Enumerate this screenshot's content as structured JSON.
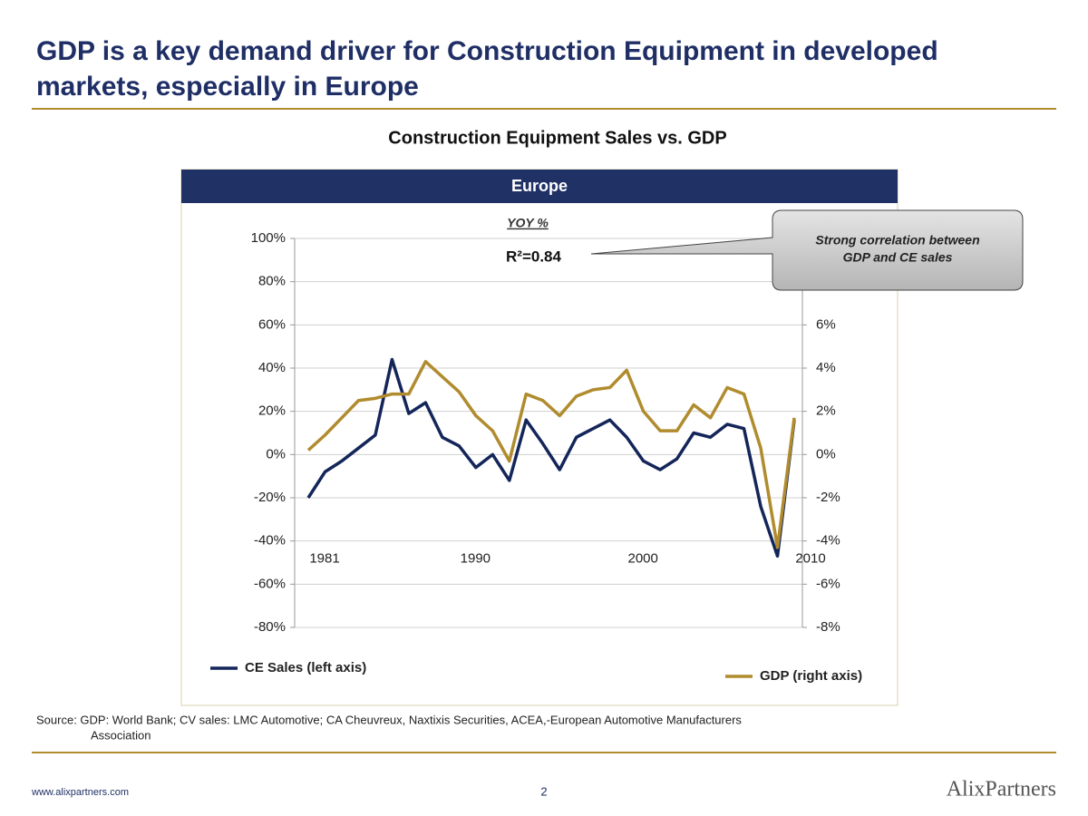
{
  "slide": {
    "title_lines": [
      "GDP is a key demand driver for Construction Equipment in developed",
      "markets, especially in Europe"
    ],
    "source_lines": [
      "Source: GDP: World Bank; CV sales: LMC Automotive; CA Cheuvreux, Naxtixis Securities, ACEA,-European  Automotive  Manufacturers",
      "Association"
    ],
    "footer_url": "www.alixpartners.com",
    "page_number": "2",
    "logo": "AlixPartners"
  },
  "chart_data": {
    "type": "line",
    "title": "Construction Equipment Sales vs. GDP",
    "panel_header": "Europe",
    "subtitle": "YOY %",
    "annotations": [
      "R²=0.84"
    ],
    "callout_lines": [
      "Strong correlation between",
      "GDP and CE sales"
    ],
    "x": [
      1981,
      1982,
      1983,
      1984,
      1985,
      1986,
      1987,
      1988,
      1989,
      1990,
      1991,
      1992,
      1993,
      1994,
      1995,
      1996,
      1997,
      1998,
      1999,
      2000,
      2001,
      2002,
      2003,
      2004,
      2005,
      2006,
      2007,
      2008,
      2009,
      2010
    ],
    "xlim": [
      1981,
      2010
    ],
    "xticks": [
      1981,
      1990,
      2000,
      2010
    ],
    "ylim": [
      -80,
      100
    ],
    "yticks": [
      {
        "value": -80,
        "label": "-80%"
      },
      {
        "value": -60,
        "label": "-60%"
      },
      {
        "value": -40,
        "label": "-40%"
      },
      {
        "value": -20,
        "label": "-20%"
      },
      {
        "value": 0,
        "label": "0%"
      },
      {
        "value": 20,
        "label": "20%"
      },
      {
        "value": 40,
        "label": "40%"
      },
      {
        "value": 60,
        "label": "60%"
      },
      {
        "value": 80,
        "label": "80%"
      },
      {
        "value": 100,
        "label": "100%"
      }
    ],
    "y2lim": [
      -8,
      10
    ],
    "y2ticks": [
      {
        "value": -8,
        "label": "-8%"
      },
      {
        "value": -6,
        "label": "-6%"
      },
      {
        "value": -4,
        "label": "-4%"
      },
      {
        "value": -2,
        "label": "-2%"
      },
      {
        "value": 0,
        "label": "0%"
      },
      {
        "value": 2,
        "label": "2%"
      },
      {
        "value": 4,
        "label": "4%"
      },
      {
        "value": 6,
        "label": "6%"
      }
    ],
    "grid": true,
    "series": [
      {
        "name": "CE Sales (left axis)",
        "color": "#14255a",
        "values": [
          -20,
          -8,
          -3,
          3,
          9,
          44,
          19,
          24,
          8,
          4,
          -6,
          0,
          -12,
          16,
          5,
          -7,
          8,
          12,
          16,
          8,
          -3,
          -7,
          -2,
          10,
          8,
          14,
          12,
          -24,
          -47,
          16
        ]
      },
      {
        "name": "GDP (right axis)",
        "color": "#b08c2e",
        "axis": "y2",
        "values": [
          0.2,
          0.9,
          1.7,
          2.5,
          2.6,
          2.8,
          2.8,
          4.3,
          3.6,
          2.9,
          1.8,
          1.1,
          -0.3,
          2.8,
          2.5,
          1.8,
          2.7,
          3.0,
          3.1,
          3.9,
          2.0,
          1.1,
          1.1,
          2.3,
          1.7,
          3.1,
          2.8,
          0.3,
          -4.3,
          1.7
        ]
      }
    ]
  }
}
